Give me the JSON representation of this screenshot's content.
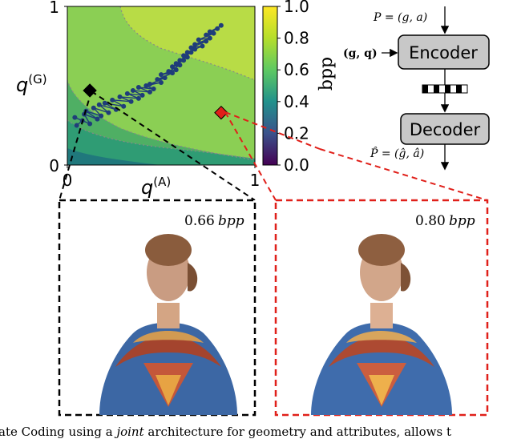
{
  "chart_data": {
    "type": "heatmap",
    "title": "",
    "xlabel": "q(A)",
    "ylabel": "q(G)",
    "xlim": [
      0,
      1
    ],
    "ylim": [
      0,
      1
    ],
    "x_ticks": [
      "0",
      "1"
    ],
    "y_ticks": [
      "0",
      "1"
    ],
    "colorbar": {
      "label": "bpp",
      "range": [
        0.0,
        1.0
      ],
      "ticks": [
        "0.0",
        "0.2",
        "0.4",
        "0.6",
        "0.8",
        "1.0"
      ],
      "colormap": "viridis"
    },
    "grid": false,
    "optimization_path": {
      "name": "",
      "x": [
        0.05,
        0.08,
        0.04,
        0.12,
        0.09,
        0.16,
        0.1,
        0.18,
        0.14,
        0.22,
        0.17,
        0.26,
        0.2,
        0.3,
        0.24,
        0.34,
        0.28,
        0.38,
        0.32,
        0.4,
        0.35,
        0.44,
        0.38,
        0.46,
        0.42,
        0.5,
        0.44,
        0.52,
        0.48,
        0.56,
        0.5,
        0.58,
        0.54,
        0.6,
        0.56,
        0.62,
        0.58,
        0.64,
        0.6,
        0.66,
        0.62,
        0.68,
        0.64,
        0.72,
        0.66,
        0.74,
        0.68,
        0.76,
        0.7,
        0.78,
        0.74,
        0.8,
        0.76,
        0.82
      ],
      "y": [
        0.25,
        0.28,
        0.3,
        0.26,
        0.32,
        0.29,
        0.34,
        0.31,
        0.36,
        0.33,
        0.38,
        0.35,
        0.39,
        0.37,
        0.41,
        0.4,
        0.43,
        0.42,
        0.45,
        0.44,
        0.47,
        0.46,
        0.49,
        0.48,
        0.5,
        0.52,
        0.51,
        0.55,
        0.54,
        0.58,
        0.57,
        0.6,
        0.59,
        0.63,
        0.62,
        0.66,
        0.64,
        0.68,
        0.66,
        0.71,
        0.69,
        0.73,
        0.71,
        0.75,
        0.74,
        0.78,
        0.76,
        0.8,
        0.79,
        0.83,
        0.82,
        0.86,
        0.84,
        0.88
      ],
      "color": "#1f3d7a"
    },
    "markers": [
      {
        "x": 0.12,
        "y": 0.47,
        "color": "#000000",
        "shape": "diamond"
      },
      {
        "x": 0.82,
        "y": 0.33,
        "color": "#e0201a",
        "shape": "diamond"
      }
    ]
  },
  "diagram": {
    "input_label": "P = (g, a)",
    "side_input_label": "(g, q)",
    "encoder_label": "Encoder",
    "decoder_label": "Decoder",
    "output_label": "P̂ = (ĝ, â)",
    "box_fill": "#c8c8c8"
  },
  "panels": {
    "left": {
      "value": "0.66",
      "unit": "bpp",
      "border_color": "#000000"
    },
    "right": {
      "value": "0.80",
      "unit": "bpp",
      "border_color": "#e0201a"
    }
  },
  "caption": {
    "text_before": "ate Coding using a ",
    "emph": "joint",
    "text_after": " architecture for geometry and attributes, allows t"
  }
}
